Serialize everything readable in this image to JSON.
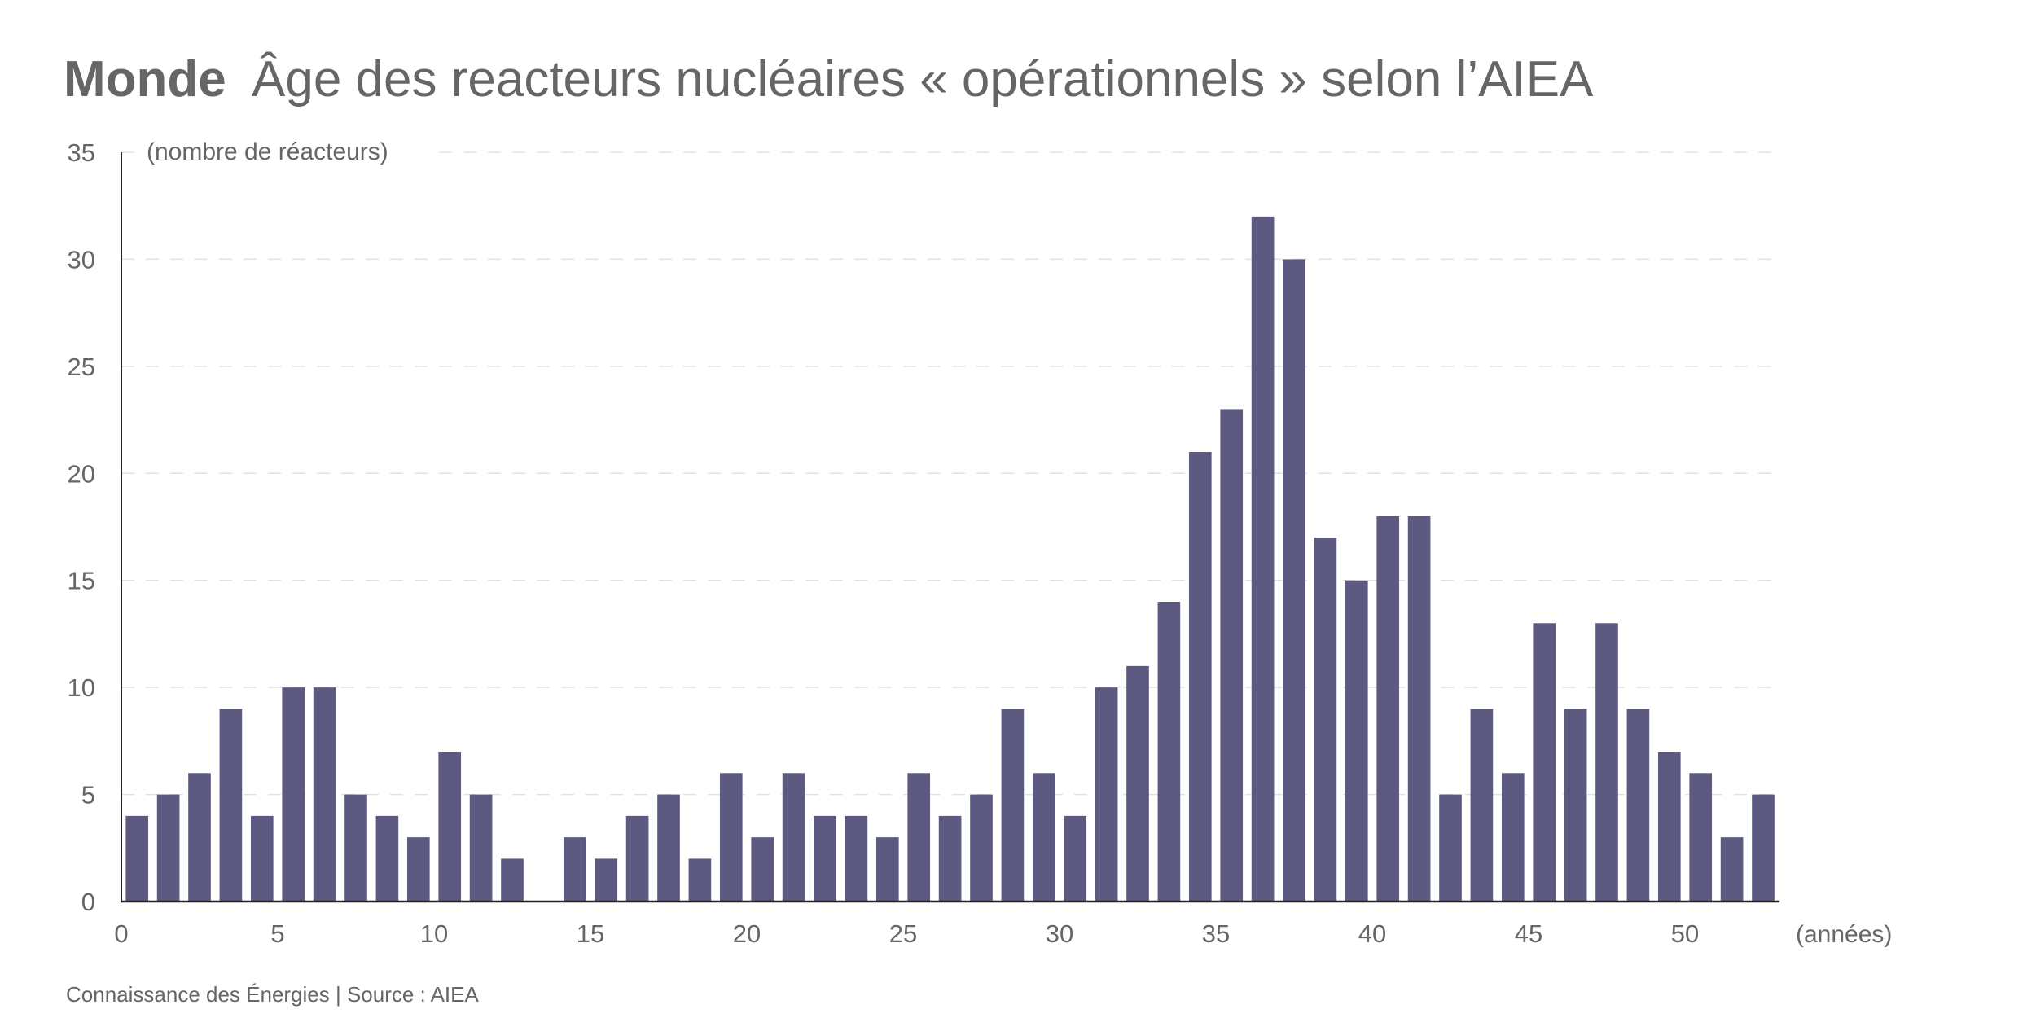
{
  "chart_data": {
    "type": "bar",
    "title_bold": "Monde",
    "title": "Âge des reacteurs nucléaires « opérationnels » selon l’AIEA",
    "ylabel": "(nombre de réacteurs)",
    "xlabel": "(années)",
    "source": "Connaissance des Énergies | Source : AIEA",
    "x": [
      0,
      1,
      2,
      3,
      4,
      5,
      6,
      7,
      8,
      9,
      10,
      11,
      12,
      13,
      14,
      15,
      16,
      17,
      18,
      19,
      20,
      21,
      22,
      23,
      24,
      25,
      26,
      27,
      28,
      29,
      30,
      31,
      32,
      33,
      34,
      35,
      36,
      37,
      38,
      39,
      40,
      41,
      42,
      43,
      44,
      45,
      46,
      47,
      48,
      49,
      50,
      51,
      52
    ],
    "values": [
      4,
      5,
      6,
      9,
      4,
      10,
      10,
      5,
      4,
      3,
      7,
      5,
      2,
      0,
      3,
      2,
      4,
      5,
      2,
      6,
      3,
      6,
      4,
      4,
      3,
      6,
      4,
      5,
      9,
      6,
      4,
      10,
      11,
      14,
      21,
      23,
      32,
      30,
      17,
      15,
      18,
      18,
      5,
      9,
      6,
      13,
      9,
      13,
      9,
      7,
      6,
      3,
      5
    ],
    "xlim": [
      0,
      53
    ],
    "ylim": [
      0,
      35
    ],
    "yticks": [
      "0",
      "5",
      "10",
      "15",
      "20",
      "25",
      "30",
      "35"
    ],
    "xticks": [
      "0",
      "5",
      "10",
      "15",
      "20",
      "25",
      "30",
      "35",
      "40",
      "45",
      "50"
    ],
    "grid": true,
    "bar_color": "#5c5a80"
  }
}
